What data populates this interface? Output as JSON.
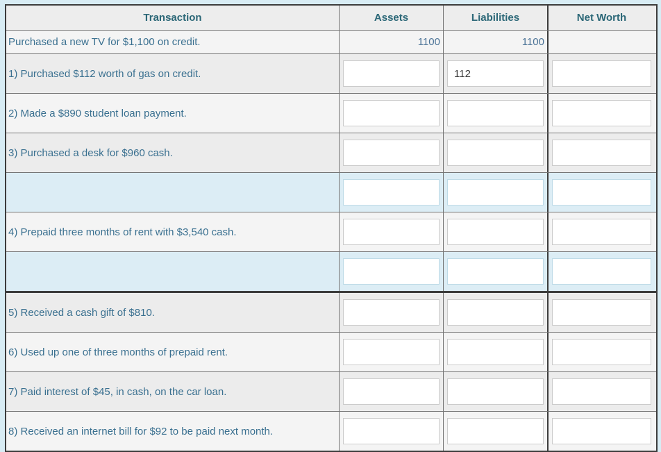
{
  "colors": {
    "page_bg": "#d8ecf4",
    "header_bg": "#ededed",
    "row_light": "#f4f4f4",
    "row_dark": "#ececec",
    "row_blue": "#dcedf5",
    "dark_border": "#3c3c3c",
    "gray_border": "#757575",
    "accent_header_text": "#2b6777",
    "label_text": "#3a7090",
    "value_text": "#4a7296"
  },
  "table": {
    "columns": {
      "transaction": "Transaction",
      "assets": "Assets",
      "liabilities": "Liabilities",
      "net_worth": "Net Worth"
    },
    "rows": [
      {
        "label": "Purchased a new TV for $1,100 on credit.",
        "kind": "static",
        "shade": "light",
        "assets": "1100",
        "liabilities": "1100",
        "net_worth": ""
      },
      {
        "label": "1) Purchased $112 worth of gas on credit.",
        "kind": "input",
        "shade": "dark",
        "assets": "",
        "liabilities": "112",
        "net_worth": ""
      },
      {
        "label": "2) Made a $890 student loan payment.",
        "kind": "input",
        "shade": "light",
        "assets": "",
        "liabilities": "",
        "net_worth": ""
      },
      {
        "label": "3) Purchased a desk for $960 cash.",
        "kind": "input",
        "shade": "dark",
        "assets": "",
        "liabilities": "",
        "net_worth": ""
      },
      {
        "label": "",
        "kind": "input",
        "shade": "blue",
        "assets": "",
        "liabilities": "",
        "net_worth": ""
      },
      {
        "label": "4) Prepaid three months of rent with $3,540 cash.",
        "kind": "input",
        "shade": "light",
        "assets": "",
        "liabilities": "",
        "net_worth": ""
      },
      {
        "label": "",
        "kind": "input",
        "shade": "blue",
        "assets": "",
        "liabilities": "",
        "net_worth": ""
      },
      {
        "label": "5) Received a cash gift of $810.",
        "kind": "input",
        "shade": "dark",
        "thick_top": true,
        "assets": "",
        "liabilities": "",
        "net_worth": ""
      },
      {
        "label": "6) Used up one of three months of prepaid rent.",
        "kind": "input",
        "shade": "light",
        "assets": "",
        "liabilities": "",
        "net_worth": ""
      },
      {
        "label": "7) Paid interest of $45, in cash, on the car loan.",
        "kind": "input",
        "shade": "dark",
        "assets": "",
        "liabilities": "",
        "net_worth": ""
      },
      {
        "label": "8) Received an internet bill for $92 to be paid next month.",
        "kind": "input",
        "shade": "light",
        "assets": "",
        "liabilities": "",
        "net_worth": ""
      }
    ]
  }
}
